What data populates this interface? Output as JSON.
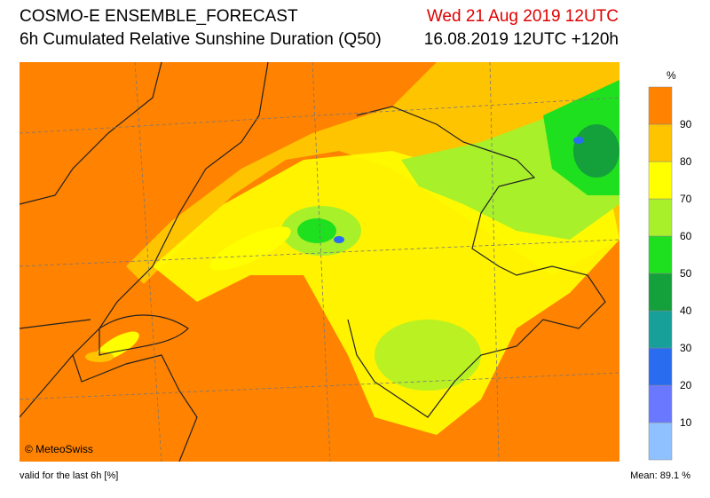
{
  "header": {
    "title": "COSMO-E ENSEMBLE_FORECAST",
    "subtitle": "6h Cumulated Relative Sunshine Duration (Q50)",
    "valid_time": "Wed 21 Aug 2019 12UTC",
    "run": "16.08.2019 12UTC +120h"
  },
  "map": {
    "credit": "© MeteoSwiss"
  },
  "legend": {
    "unit": "%",
    "ticks": [
      10,
      20,
      30,
      40,
      50,
      60,
      70,
      80,
      90
    ],
    "colors": [
      "#8fc0ff",
      "#6a78ff",
      "#2a6cf0",
      "#17a09a",
      "#14a03a",
      "#1ee01e",
      "#a8f02a",
      "#ffff00",
      "#ffc400",
      "#ff8200"
    ]
  },
  "footer": {
    "note": "valid for the last 6h [%]",
    "mean": "Mean:  89.1 %"
  }
}
